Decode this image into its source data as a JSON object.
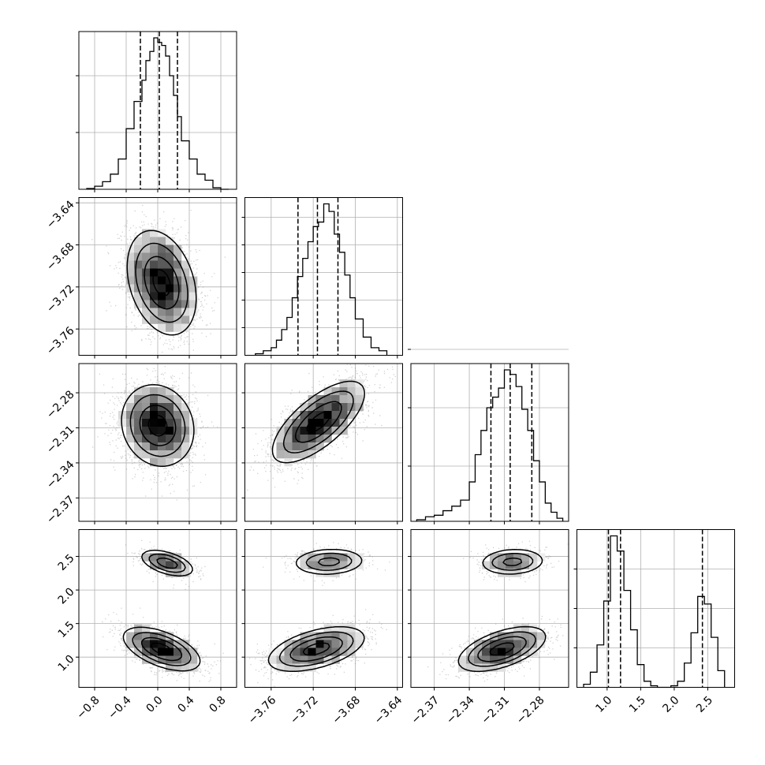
{
  "chart_data": {
    "type": "corner",
    "grid": true,
    "params": [
      {
        "range": [
          -1.0,
          1.0
        ],
        "ticks": [
          -0.8,
          -0.4,
          0.0,
          0.4,
          0.8
        ],
        "tick_labels": [
          "−0.8",
          "−0.4",
          "0.0",
          "0.4",
          "0.8"
        ],
        "quantiles": [
          -0.22,
          0.02,
          0.25
        ],
        "hist": {
          "bin_edges": [
            -0.9,
            -0.8,
            -0.7,
            -0.6,
            -0.5,
            -0.4,
            -0.3,
            -0.2,
            -0.15,
            -0.1,
            -0.05,
            0.0,
            0.05,
            0.1,
            0.15,
            0.2,
            0.25,
            0.3,
            0.4,
            0.5,
            0.6,
            0.7,
            0.8,
            0.9
          ],
          "counts": [
            0.5,
            2,
            5,
            10,
            20,
            40,
            58,
            72,
            85,
            91,
            100,
            97,
            95,
            88,
            75,
            62,
            48,
            32,
            20,
            10,
            6,
            1,
            0
          ]
        },
        "hist_yticks": [
          0.36,
          0.72
        ]
      },
      {
        "range": [
          -3.785,
          -3.635
        ],
        "ticks": [
          -3.76,
          -3.72,
          -3.68,
          -3.64
        ],
        "tick_labels": [
          "−3.76",
          "−3.72",
          "−3.68",
          "−3.64"
        ],
        "quantiles": [
          -3.7345,
          -3.716,
          -3.6965
        ],
        "hist": {
          "bin_edges": [
            -3.775,
            -3.7675,
            -3.76,
            -3.755,
            -3.75,
            -3.745,
            -3.74,
            -3.735,
            -3.73,
            -3.725,
            -3.72,
            -3.715,
            -3.71,
            -3.705,
            -3.7,
            -3.695,
            -3.69,
            -3.685,
            -3.68,
            -3.6725,
            -3.665,
            -3.6575,
            -3.65
          ],
          "counts": [
            1,
            3,
            5,
            10,
            17,
            25,
            38,
            52,
            64,
            75,
            85,
            88,
            100,
            95,
            80,
            68,
            53,
            38,
            24,
            12,
            5,
            3
          ]
        },
        "hist_yticks": [
          0.175,
          0.35,
          0.525,
          0.7,
          0.875
        ]
      },
      {
        "range": [
          -2.39,
          -2.255
        ],
        "ticks": [
          -2.37,
          -2.34,
          -2.31,
          -2.28
        ],
        "tick_labels": [
          "−2.37",
          "−2.34",
          "−2.31",
          "−2.28"
        ],
        "quantiles": [
          -2.3215,
          -2.305,
          -2.2865
        ],
        "hist": {
          "bin_edges": [
            -2.385,
            -2.3775,
            -2.37,
            -2.3625,
            -2.355,
            -2.3475,
            -2.34,
            -2.335,
            -2.33,
            -2.325,
            -2.32,
            -2.315,
            -2.31,
            -2.305,
            -2.3,
            -2.295,
            -2.29,
            -2.285,
            -2.28,
            -2.275,
            -2.27,
            -2.265,
            -2.26
          ],
          "counts": [
            1,
            3,
            4,
            7,
            10,
            14,
            26,
            44,
            60,
            75,
            82,
            88,
            100,
            97,
            89,
            74,
            60,
            40,
            26,
            12,
            6,
            2
          ]
        },
        "hist_yticks": [
          0.35,
          0.72,
          1.09
        ]
      },
      {
        "range": [
          0.55,
          2.9
        ],
        "ticks": [
          1.0,
          1.5,
          2.0,
          2.5
        ],
        "tick_labels": [
          "1.0",
          "1.5",
          "2.0",
          "2.5"
        ],
        "quantiles": [
          1.02,
          1.2,
          2.42
        ],
        "hist": {
          "bin_edges": [
            0.65,
            0.75,
            0.85,
            0.95,
            1.05,
            1.15,
            1.25,
            1.35,
            1.45,
            1.55,
            1.65,
            1.75,
            1.85,
            1.95,
            2.05,
            2.15,
            2.25,
            2.35,
            2.45,
            2.55,
            2.65,
            2.75
          ],
          "counts": [
            2,
            10,
            28,
            57,
            100,
            90,
            64,
            38,
            15,
            4,
            1,
            0,
            0,
            1,
            4,
            16,
            36,
            60,
            55,
            33,
            11
          ]
        },
        "hist_yticks": [
          0.25,
          0.5,
          0.75
        ]
      }
    ],
    "pairs": [
      {
        "row": 1,
        "col": 0,
        "modes": [
          {
            "weight": 1,
            "mean": [
              0.05,
              -3.716
            ],
            "sd": [
              0.22,
              0.025
            ],
            "rho": -0.3
          }
        ]
      },
      {
        "row": 2,
        "col": 0,
        "modes": [
          {
            "weight": 1,
            "mean": [
              0.0,
              -2.308
            ],
            "sd": [
              0.23,
              0.0175
            ],
            "rho": -0.12
          }
        ]
      },
      {
        "row": 2,
        "col": 1,
        "modes": [
          {
            "weight": 1,
            "mean": [
              -3.715,
              -2.305
            ],
            "sd": [
              0.022,
              0.0175
            ],
            "rho": 0.7
          }
        ]
      },
      {
        "row": 3,
        "col": 0,
        "modes": [
          {
            "weight": 0.74,
            "mean": [
              0.05,
              1.12
            ],
            "sd": [
              0.24,
              0.16
            ],
            "rho": -0.55
          },
          {
            "weight": 0.26,
            "mean": [
              0.12,
              2.4
            ],
            "sd": [
              0.17,
              0.1
            ],
            "rho": -0.5
          }
        ]
      },
      {
        "row": 3,
        "col": 1,
        "modes": [
          {
            "weight": 0.74,
            "mean": [
              -3.717,
              1.12
            ],
            "sd": [
              0.022,
              0.16
            ],
            "rho": 0.5
          },
          {
            "weight": 0.26,
            "mean": [
              -3.705,
              2.42
            ],
            "sd": [
              0.017,
              0.1
            ],
            "rho": 0.1
          }
        ]
      },
      {
        "row": 3,
        "col": 2,
        "modes": [
          {
            "weight": 0.74,
            "mean": [
              -2.312,
              1.12
            ],
            "sd": [
              0.018,
              0.16
            ],
            "rho": 0.55
          },
          {
            "weight": 0.26,
            "mean": [
              -2.303,
              2.42
            ],
            "sd": [
              0.014,
              0.1
            ],
            "rho": 0.1
          }
        ]
      }
    ],
    "scatter_color": "#7f7f7f",
    "hist2d_color": "#000000",
    "contour_color": "#000000",
    "quantile_line_style": "dashed"
  }
}
